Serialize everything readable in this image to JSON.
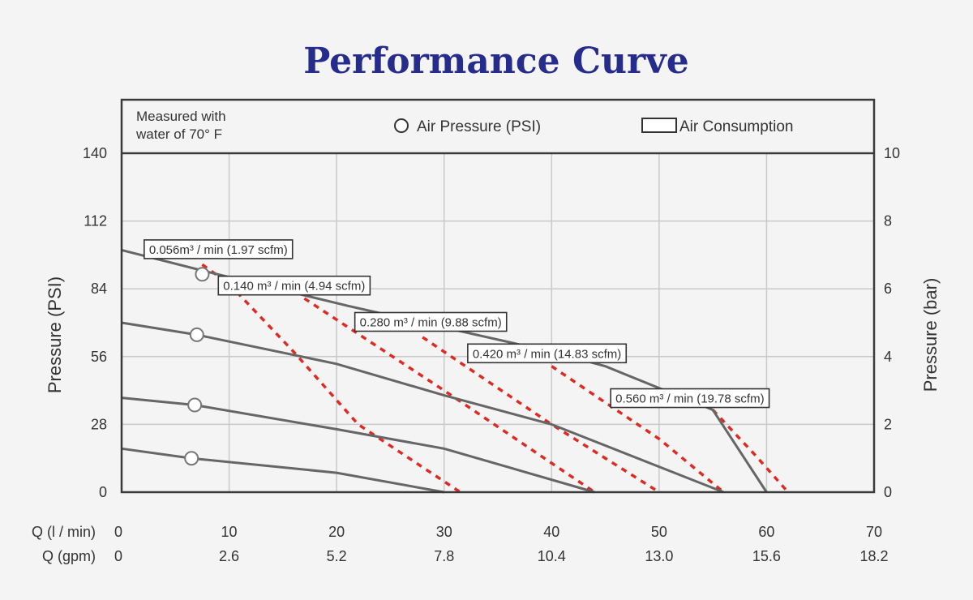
{
  "chart_data": {
    "type": "line",
    "title": "Performance Curve",
    "note": [
      "Measured with",
      "water of 70° F"
    ],
    "legend": [
      {
        "name": "Air Pressure (PSI)",
        "symbol": "circle"
      },
      {
        "name": "Air Consumption",
        "symbol": "box"
      }
    ],
    "legend_position": "top",
    "x_axis": {
      "label_lpm": "Q (l / min)",
      "label_gpm": "Q (gpm)",
      "range": [
        0,
        70
      ],
      "ticks_lpm": [
        "0",
        "10",
        "20",
        "30",
        "40",
        "50",
        "60",
        "70"
      ],
      "ticks_gpm": [
        "0",
        "2.6",
        "5.2",
        "7.8",
        "10.4",
        "13.0",
        "15.6",
        "18.2"
      ]
    },
    "y_axis_left": {
      "label": "Pressure (PSI)",
      "range": [
        0,
        140
      ],
      "ticks": [
        "0",
        "28",
        "56",
        "84",
        "112",
        "140"
      ]
    },
    "y_axis_right": {
      "label": "Pressure (bar)",
      "range": [
        0,
        10
      ],
      "ticks": [
        "0",
        "2",
        "4",
        "6",
        "8",
        "10"
      ]
    },
    "grid": true,
    "pressure_series": [
      {
        "points": [
          [
            0,
            100
          ],
          [
            8,
            91
          ],
          [
            21,
            77
          ],
          [
            40,
            58
          ],
          [
            45,
            52
          ],
          [
            55,
            34
          ],
          [
            60,
            0
          ]
        ],
        "marker": [
          7.5,
          90
        ]
      },
      {
        "points": [
          [
            0,
            70
          ],
          [
            7,
            65
          ],
          [
            20,
            53
          ],
          [
            30,
            40
          ],
          [
            40,
            28
          ],
          [
            56,
            0
          ]
        ],
        "marker": [
          7,
          65
        ]
      },
      {
        "points": [
          [
            0,
            39
          ],
          [
            6.8,
            36
          ],
          [
            20,
            26
          ],
          [
            30,
            18
          ],
          [
            44,
            0
          ]
        ],
        "marker": [
          6.8,
          36
        ]
      },
      {
        "points": [
          [
            0,
            18
          ],
          [
            6.5,
            14
          ],
          [
            20,
            8
          ],
          [
            30,
            0
          ]
        ],
        "marker": [
          6.5,
          14
        ]
      }
    ],
    "air_consumption_series": [
      {
        "name": "0.056m³ / min (1.97 scfm)",
        "points": [
          [
            7.5,
            94
          ],
          [
            10,
            86
          ]
        ]
      },
      {
        "name": "0.140 m³ / min (4.94 scfm)",
        "points": [
          [
            10,
            86
          ],
          [
            16,
            58
          ],
          [
            22,
            28
          ],
          [
            31.5,
            0
          ]
        ]
      },
      {
        "name": "0.280 m³ / min (9.88 scfm)",
        "points": [
          [
            17,
            80
          ],
          [
            30,
            42
          ],
          [
            44,
            0
          ]
        ]
      },
      {
        "name": "0.420 m³ / min (14.83 scfm)",
        "points": [
          [
            28,
            64
          ],
          [
            40,
            28
          ],
          [
            50,
            0
          ]
        ]
      },
      {
        "name": "0.560 m³ / min (19.78 scfm)",
        "points": [
          [
            40,
            52
          ],
          [
            50,
            22
          ],
          [
            56,
            0
          ]
        ]
      },
      {
        "name": "",
        "points": [
          [
            55,
            34
          ],
          [
            59,
            15
          ],
          [
            62,
            0
          ]
        ]
      }
    ],
    "curve_labels": [
      {
        "text": "0.056m³ / min (1.97 scfm)",
        "at": [
          2.4,
          98.5
        ]
      },
      {
        "text": "0.140 m³ / min (4.94 scfm)",
        "at": [
          9.3,
          83.5
        ]
      },
      {
        "text": "0.280 m³ / min (9.88 scfm)",
        "at": [
          22,
          68.5
        ]
      },
      {
        "text": "0.420 m³ / min (14.83 scfm)",
        "at": [
          32.5,
          55.5
        ]
      },
      {
        "text": "0.560 m³ / min (19.78 scfm)",
        "at": [
          45.8,
          37
        ]
      }
    ]
  }
}
